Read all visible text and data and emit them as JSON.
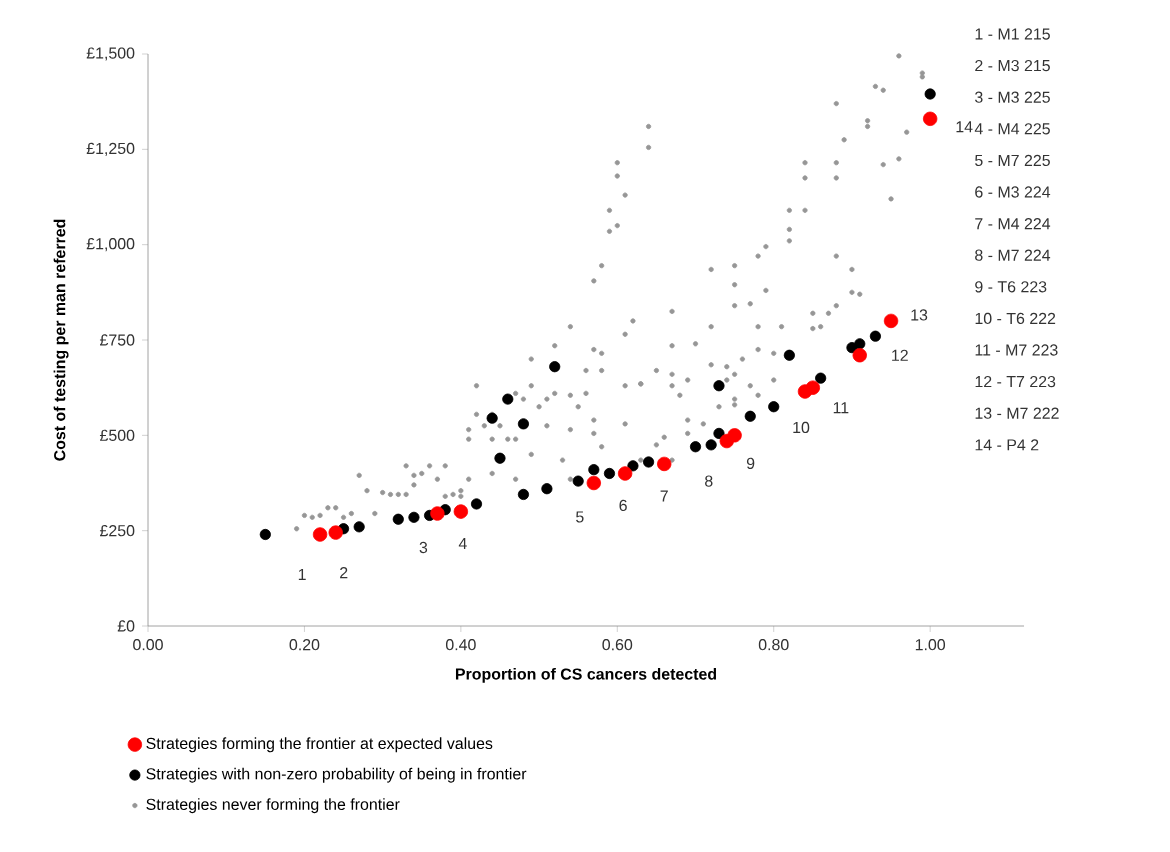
{
  "chart_data": {
    "type": "scatter",
    "xlabel": "Proportion of CS cancers detected",
    "ylabel": "Cost of testing per man referred",
    "xlim": [
      0,
      1.12
    ],
    "ylim": [
      0,
      1500
    ],
    "xticks": [
      {
        "value": 0,
        "label": "0.00"
      },
      {
        "value": 0.2,
        "label": "0.20"
      },
      {
        "value": 0.4,
        "label": "0.40"
      },
      {
        "value": 0.6,
        "label": "0.60"
      },
      {
        "value": 0.8,
        "label": "0.80"
      },
      {
        "value": 1,
        "label": "1.00"
      }
    ],
    "yticks": [
      {
        "value": 0,
        "label": "£0"
      },
      {
        "value": 250,
        "label": "£250"
      },
      {
        "value": 500,
        "label": "£500"
      },
      {
        "value": 750,
        "label": "£750"
      },
      {
        "value": 1000,
        "label": "£1,000"
      },
      {
        "value": 1250,
        "label": "£1,250"
      },
      {
        "value": 1500,
        "label": "£1,500"
      }
    ],
    "grid": false,
    "legend": "bottom",
    "marker": "circle",
    "series": [
      {
        "name": "Strategies never forming the frontier",
        "color": "#969696",
        "x": [
          0.19,
          0.2,
          0.21,
          0.22,
          0.23,
          0.24,
          0.25,
          0.26,
          0.27,
          0.28,
          0.29,
          0.3,
          0.31,
          0.32,
          0.33,
          0.33,
          0.34,
          0.34,
          0.35,
          0.36,
          0.37,
          0.38,
          0.38,
          0.39,
          0.4,
          0.4,
          0.41,
          0.41,
          0.41,
          0.42,
          0.42,
          0.43,
          0.44,
          0.44,
          0.44,
          0.45,
          0.46,
          0.47,
          0.47,
          0.47,
          0.48,
          0.49,
          0.49,
          0.49,
          0.5,
          0.51,
          0.51,
          0.52,
          0.52,
          0.53,
          0.54,
          0.54,
          0.54,
          0.55,
          0.56,
          0.56,
          0.57,
          0.57,
          0.57,
          0.58,
          0.64,
          0.64,
          0.6,
          0.6,
          0.61,
          0.59,
          0.6,
          0.59,
          0.62,
          0.61,
          0.58,
          0.58,
          0.61,
          0.63,
          0.67,
          0.67,
          0.7,
          0.72,
          0.72,
          0.75,
          0.75,
          0.75,
          0.77,
          0.79,
          0.79,
          0.78,
          0.82,
          0.82,
          0.84,
          0.82,
          0.84,
          0.84,
          0.88,
          0.88,
          0.88,
          0.9,
          0.91,
          0.9,
          0.88,
          0.87,
          0.86,
          0.85,
          0.85,
          0.81,
          0.78,
          0.76,
          0.78,
          0.8,
          0.88,
          0.89,
          0.92,
          0.92,
          0.93,
          0.94,
          0.96,
          0.99,
          0.99,
          0.94,
          0.96,
          0.97,
          0.95,
          0.74,
          0.75,
          0.69,
          0.72,
          0.67,
          0.65,
          0.65,
          0.66,
          0.67,
          0.69,
          0.69,
          0.71,
          0.73,
          0.75,
          0.75,
          0.78,
          0.77,
          0.8,
          0.63,
          0.61,
          0.58,
          0.57,
          0.54,
          0.63,
          0.67,
          0.68,
          0.74
        ],
        "values": [
          255,
          290,
          285,
          290,
          310,
          310,
          285,
          295,
          395,
          355,
          295,
          350,
          345,
          345,
          420,
          345,
          370,
          395,
          400,
          420,
          385,
          420,
          340,
          345,
          355,
          340,
          490,
          515,
          385,
          555,
          630,
          525,
          555,
          400,
          490,
          525,
          490,
          610,
          385,
          490,
          595,
          450,
          630,
          700,
          575,
          525,
          595,
          610,
          735,
          435,
          515,
          385,
          785,
          575,
          610,
          670,
          725,
          540,
          905,
          945,
          1310,
          1255,
          1215,
          1180,
          1130,
          1090,
          1050,
          1035,
          800,
          765,
          715,
          670,
          630,
          635,
          825,
          735,
          740,
          785,
          935,
          945,
          895,
          840,
          845,
          880,
          995,
          970,
          1040,
          1090,
          1090,
          1010,
          1175,
          1215,
          1215,
          1175,
          970,
          935,
          870,
          875,
          840,
          820,
          785,
          780,
          820,
          785,
          785,
          700,
          725,
          715,
          1370,
          1275,
          1310,
          1325,
          1415,
          1405,
          1495,
          1440,
          1450,
          1210,
          1225,
          1295,
          1120,
          680,
          660,
          645,
          685,
          630,
          670,
          475,
          495,
          435,
          505,
          540,
          530,
          575,
          595,
          580,
          605,
          630,
          645,
          435,
          530,
          470,
          505,
          605,
          635,
          660,
          605,
          645
        ]
      },
      {
        "name": "Strategies with non-zero probability of being in frontier",
        "color": "#000000",
        "x": [
          0.15,
          0.25,
          0.27,
          0.32,
          0.34,
          0.36,
          0.38,
          0.42,
          0.48,
          0.51,
          0.55,
          0.57,
          0.44,
          0.46,
          0.48,
          0.45,
          0.52,
          0.59,
          0.62,
          0.64,
          0.7,
          0.72,
          0.73,
          0.77,
          0.8,
          0.86,
          0.73,
          0.82,
          0.9,
          0.91,
          0.93,
          1.0
        ],
        "values": [
          240,
          255,
          260,
          280,
          285,
          290,
          305,
          320,
          345,
          360,
          380,
          410,
          545,
          595,
          530,
          440,
          680,
          400,
          420,
          430,
          470,
          475,
          505,
          550,
          575,
          650,
          630,
          710,
          730,
          740,
          760,
          1395
        ]
      },
      {
        "name": "Strategies forming the frontier at expected values",
        "color": "#ff0000",
        "x": [
          0.22,
          0.24,
          0.37,
          0.4,
          0.57,
          0.61,
          0.66,
          0.74,
          0.75,
          0.84,
          0.85,
          0.91,
          0.95,
          1.0
        ],
        "values": [
          240,
          245,
          295,
          300,
          375,
          400,
          425,
          485,
          500,
          615,
          625,
          710,
          800,
          1330
        ]
      }
    ],
    "annotations": [
      {
        "text": "1",
        "x": 0.22,
        "y": 240
      },
      {
        "text": "2",
        "x": 0.24,
        "y": 245
      },
      {
        "text": "3",
        "x": 0.37,
        "y": 295
      },
      {
        "text": "4",
        "x": 0.4,
        "y": 300
      },
      {
        "text": "5",
        "x": 0.57,
        "y": 375
      },
      {
        "text": "6",
        "x": 0.61,
        "y": 400
      },
      {
        "text": "7",
        "x": 0.66,
        "y": 425
      },
      {
        "text": "8",
        "x": 0.74,
        "y": 485
      },
      {
        "text": "9",
        "x": 0.75,
        "y": 500
      },
      {
        "text": "10",
        "x": 0.84,
        "y": 615
      },
      {
        "text": "11",
        "x": 0.85,
        "y": 625
      },
      {
        "text": "12",
        "x": 0.91,
        "y": 710
      },
      {
        "text": "13",
        "x": 0.95,
        "y": 800
      },
      {
        "text": "14",
        "x": 1.0,
        "y": 1330
      },
      "1 - M1 215",
      "2 - M3 215",
      "3 - M3 225",
      "4 - M4 225",
      "5 - M7 225",
      "6 - M3 224",
      "7 - M4 224",
      "8 - M7 224",
      "9 - T6 223",
      "10 - T6 222",
      "11 - M7 223",
      "12 - T7 223",
      "13 - M7 222",
      "14 - P4 2"
    ]
  }
}
